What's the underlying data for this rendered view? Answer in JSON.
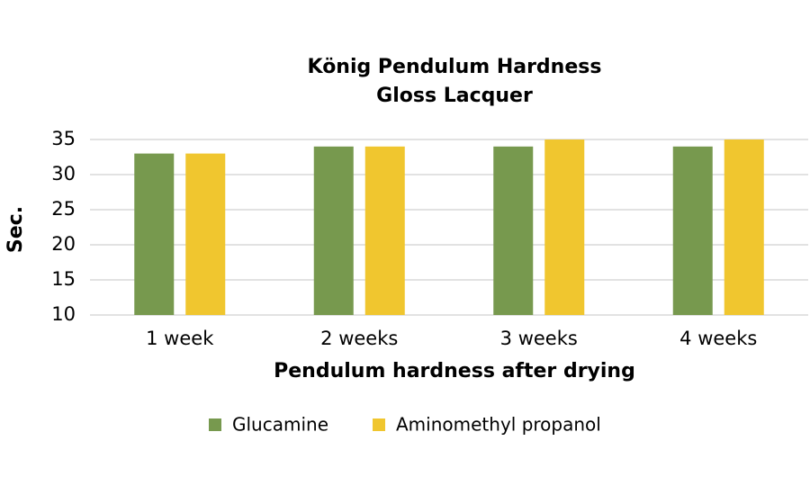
{
  "chart_data": {
    "type": "bar",
    "title": [
      "König Pendulum Hardness",
      "Gloss Lacquer"
    ],
    "x_label": "Pendulum hardness after drying",
    "y_label": "Sec.",
    "categories": [
      "1 week",
      "2 weeks",
      "3 weeks",
      "4 weeks"
    ],
    "series": [
      {
        "name": "Glucamine",
        "color": "#77994e",
        "values": [
          33,
          34,
          34,
          34
        ]
      },
      {
        "name": "Aminomethyl propanol",
        "color": "#f0c62f",
        "values": [
          33,
          34,
          35,
          35
        ]
      }
    ],
    "ylim": [
      10,
      35
    ],
    "yticks": [
      10,
      15,
      20,
      25,
      30,
      35
    ],
    "grid": true
  }
}
